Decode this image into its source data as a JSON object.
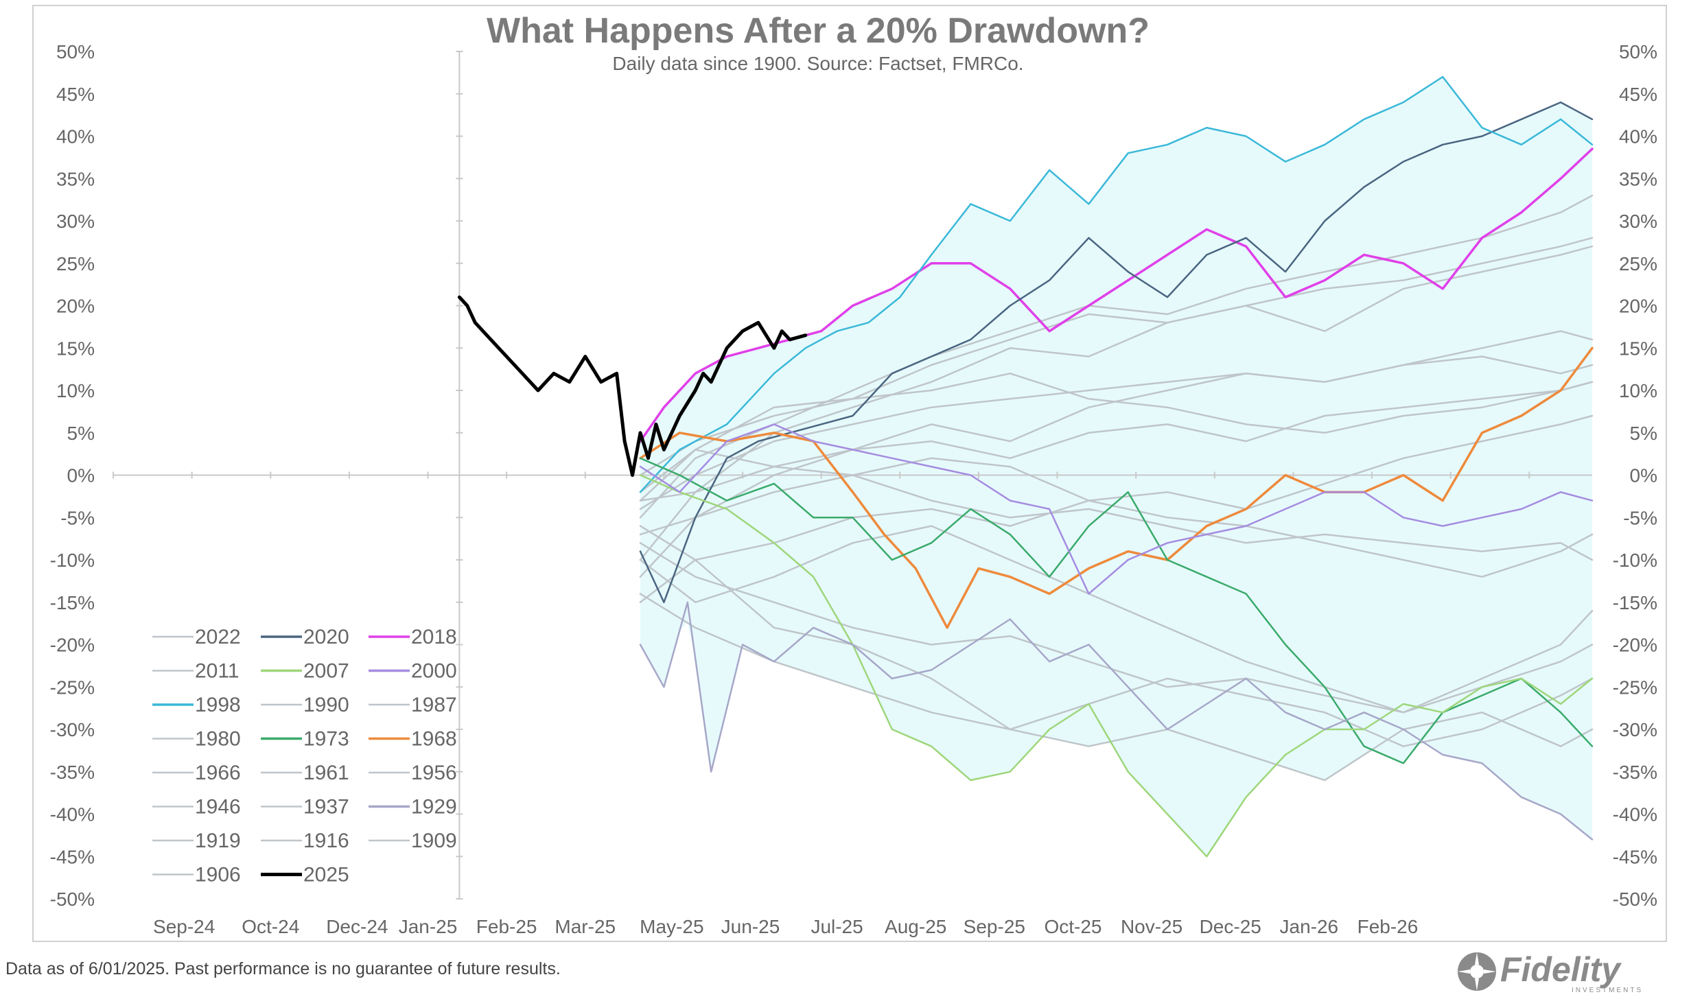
{
  "chart_data": {
    "type": "line",
    "title": "What Happens After a 20% Drawdown?",
    "subtitle": "Daily data since 1900.  Source: Factset, FMRCo.",
    "xlabel": "",
    "ylabel": "",
    "ylim": [
      -50,
      50
    ],
    "y_ticks": [
      "50%",
      "45%",
      "40%",
      "35%",
      "30%",
      "25%",
      "20%",
      "15%",
      "10%",
      "5%",
      "0%",
      "-5%",
      "-10%",
      "-15%",
      "-20%",
      "-25%",
      "-30%",
      "-35%",
      "-40%",
      "-45%",
      "-50%"
    ],
    "x_ticks": [
      "Sep-24",
      "Oct-24",
      "Dec-24",
      "Jan-25",
      "Feb-25",
      "Mar-25",
      "May-25",
      "Jun-25",
      "Jul-25",
      "Aug-25",
      "Sep-25",
      "Oct-25",
      "Nov-25",
      "Dec-25",
      "Jan-26",
      "Feb-26"
    ],
    "x_range": [
      "Aug-24",
      "Mar-26"
    ],
    "grid": "horizontal and vertical at 0",
    "legend_position": "bottom-left",
    "colors": {
      "grey": "#bfc5c9",
      "y2020": "#4a6580",
      "y2018": "#e040e8",
      "y2007": "#9ed67a",
      "y2000": "#a58ce0",
      "y1998": "#3ab8d8",
      "y1973": "#3aaa6a",
      "y1968": "#ee8a3c",
      "y1929": "#a7a7c8",
      "y2025": "#000000",
      "band": "#e6fafc"
    },
    "legend": [
      {
        "name": "2022",
        "color": "#bfc5c9"
      },
      {
        "name": "2020",
        "color": "#4a6580"
      },
      {
        "name": "2018",
        "color": "#e040e8"
      },
      {
        "name": "2011",
        "color": "#bfc5c9"
      },
      {
        "name": "2007",
        "color": "#9ed67a"
      },
      {
        "name": "2000",
        "color": "#a58ce0"
      },
      {
        "name": "1998",
        "color": "#3ab8d8"
      },
      {
        "name": "1990",
        "color": "#bfc5c9"
      },
      {
        "name": "1987",
        "color": "#bfc5c9"
      },
      {
        "name": "1980",
        "color": "#bfc5c9"
      },
      {
        "name": "1973",
        "color": "#3aaa6a"
      },
      {
        "name": "1968",
        "color": "#ee8a3c"
      },
      {
        "name": "1966",
        "color": "#bfc5c9"
      },
      {
        "name": "1961",
        "color": "#bfc5c9"
      },
      {
        "name": "1956",
        "color": "#bfc5c9"
      },
      {
        "name": "1946",
        "color": "#bfc5c9"
      },
      {
        "name": "1937",
        "color": "#bfc5c9"
      },
      {
        "name": "1929",
        "color": "#a7a7c8"
      },
      {
        "name": "1919",
        "color": "#bfc5c9"
      },
      {
        "name": "1916",
        "color": "#bfc5c9"
      },
      {
        "name": "1909",
        "color": "#bfc5c9"
      },
      {
        "name": "1906",
        "color": "#bfc5c9"
      },
      {
        "name": "2025",
        "color": "#000000"
      }
    ],
    "series": [
      {
        "name": "2025",
        "x": [
          4.0,
          4.1,
          4.2,
          4.4,
          4.6,
          4.8,
          5.0,
          5.2,
          5.4,
          5.6,
          5.8,
          6.0,
          6.1,
          6.2,
          6.3,
          6.4,
          6.5,
          6.6,
          6.8,
          7.0,
          7.1,
          7.2,
          7.4,
          7.6,
          7.8,
          8.0,
          8.1,
          8.2,
          8.4
        ],
        "values": [
          21,
          20,
          18,
          16,
          14,
          12,
          10,
          12,
          11,
          14,
          11,
          12,
          4,
          0,
          5,
          2,
          6,
          3,
          7,
          10,
          12,
          11,
          15,
          17,
          18,
          15,
          17,
          16,
          16.5
        ]
      },
      {
        "name": "2018",
        "x": [
          6.3,
          6.6,
          7.0,
          7.4,
          7.8,
          8.2,
          8.6,
          9.0,
          9.5,
          10.0,
          10.5,
          11.0,
          11.5,
          12.0,
          12.5,
          13.0,
          13.5,
          14.0,
          14.5,
          15.0,
          15.5,
          16.0,
          16.5,
          17.0,
          17.5,
          18.0,
          18.4
        ],
        "values": [
          4,
          8,
          12,
          14,
          15,
          16,
          17,
          20,
          22,
          25,
          25,
          22,
          17,
          20,
          23,
          26,
          29,
          27,
          21,
          23,
          26,
          25,
          22,
          28,
          31,
          35,
          38.5
        ]
      },
      {
        "name": "2020",
        "x": [
          6.3,
          6.6,
          7.0,
          7.4,
          7.8,
          8.2,
          8.6,
          9.0,
          9.5,
          10.0,
          10.5,
          11.0,
          11.5,
          12.0,
          12.5,
          13.0,
          13.5,
          14.0,
          14.5,
          15.0,
          15.5,
          16.0,
          16.5,
          17.0,
          17.5,
          18.0,
          18.4
        ],
        "values": [
          -9,
          -15,
          -5,
          2,
          4,
          5,
          6,
          7,
          12,
          14,
          16,
          20,
          23,
          28,
          24,
          21,
          26,
          28,
          24,
          30,
          34,
          37,
          39,
          40,
          42,
          44,
          42
        ]
      },
      {
        "name": "1998",
        "x": [
          6.3,
          6.8,
          7.4,
          8.0,
          8.4,
          8.8,
          9.2,
          9.6,
          10.0,
          10.5,
          11.0,
          11.5,
          12.0,
          12.5,
          13.0,
          13.5,
          14.0,
          14.5,
          15.0,
          15.5,
          16.0,
          16.5,
          17.0,
          17.5,
          18.0,
          18.4
        ],
        "values": [
          -2,
          3,
          6,
          12,
          15,
          17,
          18,
          21,
          26,
          32,
          30,
          36,
          32,
          38,
          39,
          41,
          40,
          37,
          39,
          42,
          44,
          47,
          41,
          39,
          42,
          39
        ]
      },
      {
        "name": "1968",
        "x": [
          6.3,
          6.8,
          7.4,
          8.0,
          8.5,
          9.0,
          9.4,
          9.8,
          10.2,
          10.6,
          11.0,
          11.5,
          12.0,
          12.5,
          13.0,
          13.5,
          14.0,
          14.5,
          15.0,
          15.5,
          16.0,
          16.5,
          17.0,
          17.5,
          18.0,
          18.4
        ],
        "values": [
          2,
          5,
          4,
          5,
          4,
          -2,
          -7,
          -11,
          -18,
          -11,
          -12,
          -14,
          -11,
          -9,
          -10,
          -6,
          -4,
          0,
          -2,
          -2,
          0,
          -3,
          5,
          7,
          10,
          15
        ]
      },
      {
        "name": "1973",
        "x": [
          6.3,
          6.8,
          7.4,
          8.0,
          8.5,
          9.0,
          9.5,
          10.0,
          10.5,
          11.0,
          11.5,
          12.0,
          12.5,
          13.0,
          13.5,
          14.0,
          14.5,
          15.0,
          15.5,
          16.0,
          16.5,
          17.0,
          17.5,
          18.0,
          18.4
        ],
        "values": [
          2,
          0,
          -3,
          -1,
          -5,
          -5,
          -10,
          -8,
          -4,
          -7,
          -12,
          -6,
          -2,
          -10,
          -12,
          -14,
          -20,
          -25,
          -32,
          -34,
          -28,
          -26,
          -24,
          -28,
          -32
        ]
      },
      {
        "name": "2007",
        "x": [
          6.3,
          6.8,
          7.4,
          8.0,
          8.5,
          9.0,
          9.5,
          10.0,
          10.5,
          11.0,
          11.5,
          12.0,
          12.5,
          13.0,
          13.5,
          14.0,
          14.5,
          15.0,
          15.5,
          16.0,
          16.5,
          17.0,
          17.5,
          18.0,
          18.4
        ],
        "values": [
          0,
          -2,
          -4,
          -8,
          -12,
          -20,
          -30,
          -32,
          -36,
          -35,
          -30,
          -27,
          -35,
          -40,
          -45,
          -38,
          -33,
          -30,
          -30,
          -27,
          -28,
          -25,
          -24,
          -27,
          -24
        ]
      },
      {
        "name": "2000",
        "x": [
          6.3,
          6.8,
          7.4,
          8.0,
          8.5,
          9.0,
          9.5,
          10.0,
          10.5,
          11.0,
          11.5,
          12.0,
          12.5,
          13.0,
          13.5,
          14.0,
          14.5,
          15.0,
          15.5,
          16.0,
          16.5,
          17.0,
          17.5,
          18.0,
          18.4
        ],
        "values": [
          1,
          -2,
          4,
          6,
          4,
          3,
          2,
          1,
          0,
          -3,
          -4,
          -14,
          -10,
          -8,
          -7,
          -6,
          -4,
          -2,
          -2,
          -5,
          -6,
          -5,
          -4,
          -2,
          -3
        ]
      },
      {
        "name": "1929",
        "x": [
          6.3,
          6.6,
          6.9,
          7.2,
          7.6,
          8.0,
          8.5,
          9.0,
          9.5,
          10.0,
          10.5,
          11.0,
          11.5,
          12.0,
          12.5,
          13.0,
          13.5,
          14.0,
          14.5,
          15.0,
          15.5,
          16.0,
          16.5,
          17.0,
          17.5,
          18.0,
          18.4
        ],
        "values": [
          -20,
          -25,
          -15,
          -35,
          -20,
          -22,
          -18,
          -20,
          -24,
          -23,
          -20,
          -17,
          -22,
          -20,
          -25,
          -30,
          -27,
          -24,
          -28,
          -30,
          -28,
          -30,
          -33,
          -34,
          -38,
          -40,
          -43
        ]
      },
      {
        "name": "2022",
        "x": [
          6.3,
          7.0,
          8.0,
          9.0,
          10.0,
          11.0,
          12.0,
          13.0,
          14.0,
          15.0,
          16.0,
          17.0,
          18.0,
          18.4
        ],
        "values": [
          -3,
          3,
          8,
          9,
          13,
          16,
          19,
          18,
          20,
          22,
          23,
          25,
          27,
          28
        ]
      },
      {
        "name": "2011",
        "x": [
          6.3,
          7.0,
          8.0,
          9.0,
          10.0,
          11.0,
          12.0,
          13.0,
          14.0,
          15.0,
          16.0,
          17.0,
          18.0,
          18.4
        ],
        "values": [
          -10,
          -2,
          5,
          8,
          11,
          15,
          14,
          18,
          20,
          17,
          22,
          24,
          26,
          27
        ]
      },
      {
        "name": "1990",
        "x": [
          6.3,
          7.0,
          8.0,
          9.0,
          10.0,
          11.0,
          12.0,
          13.0,
          14.0,
          15.0,
          16.0,
          17.0,
          18.0,
          18.4
        ],
        "values": [
          -5,
          2,
          6,
          10,
          14,
          17,
          20,
          19,
          22,
          24,
          26,
          28,
          31,
          33
        ]
      },
      {
        "name": "1987",
        "x": [
          6.3,
          7.0,
          8.0,
          9.0,
          10.0,
          11.0,
          12.0,
          13.0,
          14.0,
          15.0,
          16.0,
          17.0,
          18.0,
          18.4
        ],
        "values": [
          -12,
          -5,
          0,
          3,
          6,
          4,
          8,
          10,
          12,
          11,
          13,
          15,
          17,
          16
        ]
      },
      {
        "name": "1980",
        "x": [
          6.3,
          7.0,
          8.0,
          9.0,
          10.0,
          11.0,
          12.0,
          13.0,
          14.0,
          15.0,
          16.0,
          17.0,
          18.0,
          18.4
        ],
        "values": [
          -4,
          0,
          4,
          6,
          8,
          9,
          10,
          11,
          12,
          11,
          13,
          14,
          12,
          13
        ]
      },
      {
        "name": "1966",
        "x": [
          6.3,
          7.0,
          8.0,
          9.0,
          10.0,
          11.0,
          12.0,
          13.0,
          14.0,
          15.0,
          16.0,
          17.0,
          18.0,
          18.4
        ],
        "values": [
          -3,
          -2,
          1,
          3,
          4,
          2,
          5,
          6,
          4,
          7,
          8,
          9,
          10,
          11
        ]
      },
      {
        "name": "1961",
        "x": [
          6.3,
          7.0,
          8.0,
          9.0,
          10.0,
          11.0,
          12.0,
          13.0,
          14.0,
          15.0,
          16.0,
          17.0,
          18.0,
          18.4
        ],
        "values": [
          -6,
          -10,
          -8,
          -5,
          -4,
          -6,
          -3,
          -2,
          -4,
          -1,
          2,
          4,
          6,
          7
        ]
      },
      {
        "name": "1956",
        "x": [
          6.3,
          7.0,
          8.0,
          9.0,
          10.0,
          11.0,
          12.0,
          13.0,
          14.0,
          15.0,
          16.0,
          17.0,
          18.0,
          18.4
        ],
        "values": [
          -2,
          3,
          1,
          0,
          -3,
          -5,
          -4,
          -6,
          -8,
          -7,
          -8,
          -9,
          -8,
          -10
        ]
      },
      {
        "name": "1946",
        "x": [
          6.3,
          7.0,
          8.0,
          9.0,
          10.0,
          11.0,
          12.0,
          13.0,
          14.0,
          15.0,
          16.0,
          17.0,
          18.0,
          18.4
        ],
        "values": [
          -8,
          -12,
          -15,
          -18,
          -20,
          -19,
          -22,
          -25,
          -24,
          -26,
          -28,
          -25,
          -22,
          -20
        ]
      },
      {
        "name": "1937",
        "x": [
          6.3,
          7.0,
          8.0,
          9.0,
          10.0,
          11.0,
          12.0,
          13.0,
          14.0,
          15.0,
          16.0,
          17.0,
          18.0,
          18.4
        ],
        "values": [
          -15,
          -10,
          -18,
          -20,
          -24,
          -30,
          -32,
          -30,
          -33,
          -36,
          -30,
          -28,
          -32,
          -30
        ]
      },
      {
        "name": "1919",
        "x": [
          6.3,
          7.0,
          8.0,
          9.0,
          10.0,
          11.0,
          12.0,
          13.0,
          14.0,
          15.0,
          16.0,
          17.0,
          18.0,
          18.4
        ],
        "values": [
          -10,
          -15,
          -12,
          -8,
          -6,
          -10,
          -14,
          -18,
          -22,
          -25,
          -28,
          -24,
          -20,
          -16
        ]
      },
      {
        "name": "1916",
        "x": [
          6.3,
          7.0,
          8.0,
          9.0,
          10.0,
          11.0,
          12.0,
          13.0,
          14.0,
          15.0,
          16.0,
          17.0,
          18.0,
          18.4
        ],
        "values": [
          0,
          4,
          7,
          9,
          10,
          12,
          9,
          8,
          6,
          5,
          7,
          8,
          10,
          11
        ]
      },
      {
        "name": "1909",
        "x": [
          6.3,
          7.0,
          8.0,
          9.0,
          10.0,
          11.0,
          12.0,
          13.0,
          14.0,
          15.0,
          16.0,
          17.0,
          18.0,
          18.4
        ],
        "values": [
          -7,
          -5,
          -2,
          0,
          2,
          1,
          -3,
          -5,
          -6,
          -8,
          -10,
          -12,
          -9,
          -7
        ]
      },
      {
        "name": "1906",
        "x": [
          6.3,
          7.0,
          8.0,
          9.0,
          10.0,
          11.0,
          12.0,
          13.0,
          14.0,
          15.0,
          16.0,
          17.0,
          18.0,
          18.4
        ],
        "values": [
          -14,
          -18,
          -22,
          -25,
          -28,
          -30,
          -27,
          -24,
          -26,
          -28,
          -32,
          -30,
          -26,
          -24
        ]
      }
    ]
  },
  "footnote": "Data as of 6/01/2025. Past performance is no guarantee of future results.",
  "brand": {
    "name": "Fidelity",
    "tagline": "INVESTMENTS"
  }
}
